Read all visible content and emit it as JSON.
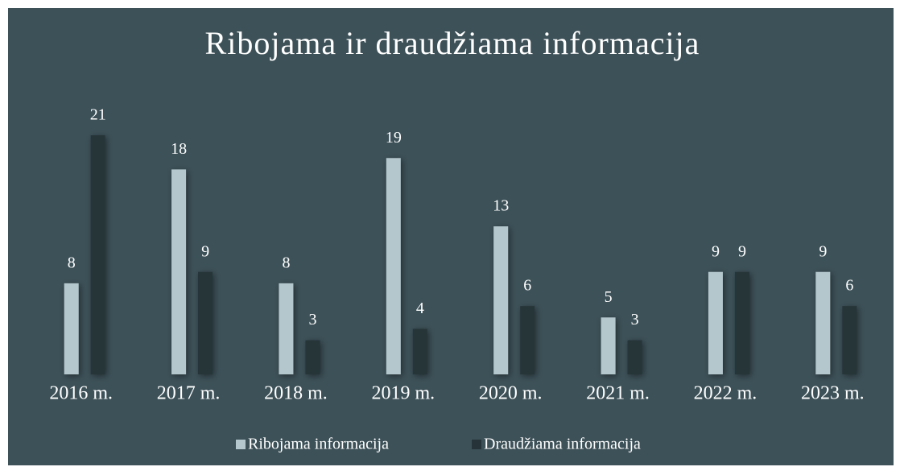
{
  "chart_data": {
    "type": "bar",
    "title": "Ribojama ir draudžiama informacija",
    "categories": [
      "2016 m.",
      "2017 m.",
      "2018 m.",
      "2019 m.",
      "2020 m.",
      "2021 m.",
      "2022 m.",
      "2023 m."
    ],
    "series": [
      {
        "name": "Ribojama informacija",
        "color": "#b4c7cc",
        "values": [
          8,
          18,
          8,
          19,
          13,
          5,
          9,
          9
        ]
      },
      {
        "name": "Draudžiama informacija",
        "color": "#263439",
        "values": [
          21,
          9,
          3,
          4,
          6,
          3,
          9,
          6
        ]
      }
    ]
  }
}
